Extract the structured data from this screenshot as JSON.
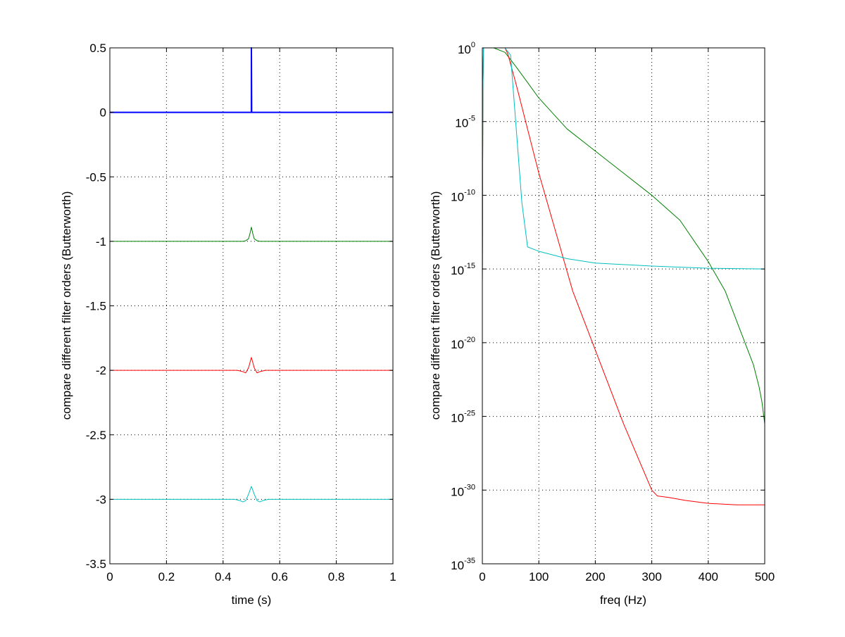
{
  "chart_data": [
    {
      "type": "line",
      "xlabel": "time (s)",
      "ylabel": "compare different filter orders (Butterworth)",
      "xlim": [
        0,
        1
      ],
      "ylim": [
        -3.5,
        0.5
      ],
      "xticks": [
        "0",
        "0.2",
        "0.4",
        "0.6",
        "0.8",
        "1"
      ],
      "yticks": [
        "0.5",
        "0",
        "-0.5",
        "-1",
        "-1.5",
        "-2",
        "-2.5",
        "-3",
        "-3.5"
      ],
      "grid": true,
      "series": [
        {
          "color": "#0000ff",
          "x": [
            0,
            0.499,
            0.5,
            0.5,
            0.501,
            1
          ],
          "y": [
            0,
            0,
            0,
            0.5,
            0,
            0
          ]
        },
        {
          "color": "#008000",
          "x": [
            0,
            0.47,
            0.48,
            0.49,
            0.495,
            0.5,
            0.505,
            0.51,
            0.52,
            0.53,
            1
          ],
          "y": [
            -1,
            -1,
            -0.995,
            -0.98,
            -0.94,
            -0.89,
            -0.94,
            -0.98,
            -0.995,
            -1,
            -1
          ]
        },
        {
          "color": "#ff0000",
          "x": [
            0,
            0.45,
            0.46,
            0.47,
            0.48,
            0.49,
            0.5,
            0.51,
            0.52,
            0.53,
            0.54,
            0.55,
            1
          ],
          "y": [
            -2,
            -2,
            -2.005,
            -2.01,
            -2.02,
            -1.98,
            -1.9,
            -1.98,
            -2.02,
            -2.01,
            -2.005,
            -2,
            -2
          ]
        },
        {
          "color": "#00bfbf",
          "x": [
            0,
            0.44,
            0.45,
            0.46,
            0.47,
            0.48,
            0.49,
            0.5,
            0.51,
            0.52,
            0.53,
            0.54,
            0.55,
            0.56,
            1
          ],
          "y": [
            -3,
            -3,
            -3.005,
            -3.01,
            -3.02,
            -3.01,
            -2.96,
            -2.9,
            -2.96,
            -3.01,
            -3.02,
            -3.01,
            -3.005,
            -3,
            -3
          ]
        }
      ]
    },
    {
      "type": "line",
      "xlabel": "freq (Hz)",
      "ylabel": "compare different filter orders (Butterworth)",
      "xlim": [
        0,
        500
      ],
      "ylim": [
        -35,
        0
      ],
      "yscale": "log",
      "xticks": [
        "0",
        "100",
        "200",
        "300",
        "400",
        "500"
      ],
      "yticks": [
        {
          "base": "10",
          "exp": "0"
        },
        {
          "base": "10",
          "exp": "-5"
        },
        {
          "base": "10",
          "exp": "-10"
        },
        {
          "base": "10",
          "exp": "-15"
        },
        {
          "base": "10",
          "exp": "-20"
        },
        {
          "base": "10",
          "exp": "-25"
        },
        {
          "base": "10",
          "exp": "-30"
        },
        {
          "base": "10",
          "exp": "-35"
        }
      ],
      "grid": true,
      "y_values_are_log10": true,
      "series": [
        {
          "color": "#008000",
          "x": [
            0,
            1,
            2,
            20,
            40,
            60,
            100,
            150,
            200,
            250,
            300,
            350,
            400,
            430,
            450,
            470,
            480,
            490,
            495,
            500
          ],
          "y": [
            -16,
            -3,
            0,
            0,
            -0.3,
            -1.3,
            -3.4,
            -5.5,
            -7,
            -8.5,
            -10,
            -11.7,
            -14.5,
            -16.5,
            -18.5,
            -20.5,
            -21.5,
            -23,
            -24,
            -25.5
          ]
        },
        {
          "color": "#ff0000",
          "x": [
            0,
            1,
            2,
            20,
            40,
            45,
            60,
            80,
            100,
            130,
            160,
            200,
            250,
            300,
            310,
            330,
            360,
            400,
            450,
            500
          ],
          "y": [
            -16,
            -3,
            0,
            0,
            0,
            -0.4,
            -2.5,
            -5.5,
            -8.5,
            -12.5,
            -16.5,
            -20.5,
            -25.5,
            -30,
            -30.4,
            -30.5,
            -30.7,
            -30.9,
            -31,
            -31
          ]
        },
        {
          "color": "#00bfbf",
          "x": [
            0,
            1,
            2,
            20,
            40,
            50,
            70,
            80,
            100,
            150,
            200,
            300,
            400,
            500
          ],
          "y": [
            -16,
            -3,
            0,
            0,
            0,
            -0.5,
            -10.5,
            -13.5,
            -13.8,
            -14.3,
            -14.6,
            -14.8,
            -14.95,
            -15
          ]
        }
      ]
    }
  ]
}
